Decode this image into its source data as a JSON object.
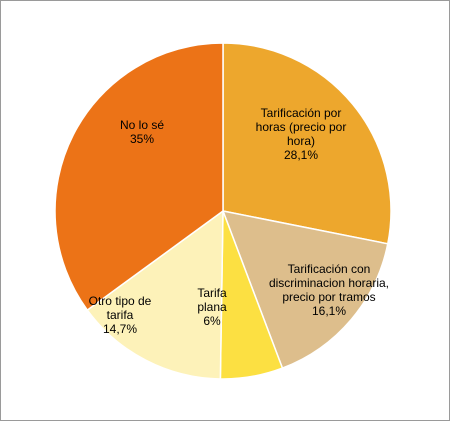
{
  "chart_data": {
    "type": "pie",
    "title": "",
    "slices": [
      {
        "label": [
          "Tarificación por",
          "horas (precio por",
          "hora)"
        ],
        "value_label": "28,1%",
        "value": 28.1,
        "color": "#EDA72D"
      },
      {
        "label": [
          "Tarificación con",
          "discriminacion horaria,",
          "precio por tramos"
        ],
        "value_label": "16,1%",
        "value": 16.1,
        "color": "#DDBE8C"
      },
      {
        "label": [
          "Tarifa",
          "plana"
        ],
        "value_label": "6%",
        "value": 6,
        "color": "#FCE042"
      },
      {
        "label": [
          "Otro tipo de",
          "tarifa"
        ],
        "value_label": "14,7%",
        "value": 14.7,
        "color": "#FDF2B9"
      },
      {
        "label": [
          "No lo sé"
        ],
        "value_label": "35%",
        "value": 35,
        "color": "#EC7317"
      }
    ]
  }
}
